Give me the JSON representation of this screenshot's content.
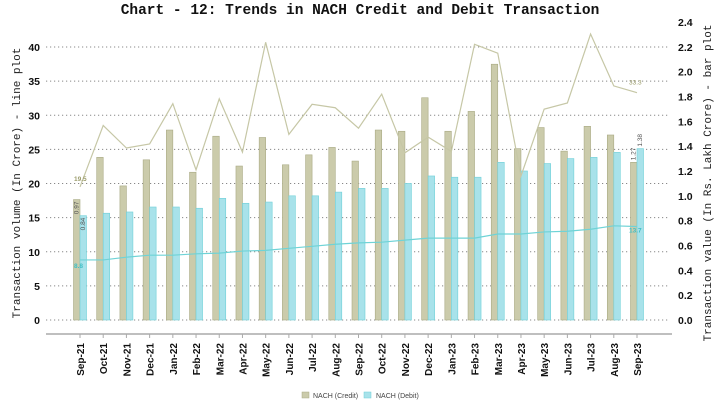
{
  "chart_data": {
    "type": "bar+line",
    "title": "Chart - 12: Trends in NACH Credit and Debit Transaction",
    "ylabel_left": "Transaction volume (In Crore) - line plot",
    "ylabel_right": "Transaction value (In Rs. Lakh Crore) - bar plot",
    "ylim_left": [
      0,
      40
    ],
    "yticks_left": [
      0,
      5,
      10,
      15,
      20,
      25,
      30,
      35,
      40
    ],
    "ylim_right": [
      0,
      2.4
    ],
    "yticks_right": [
      "0.0",
      "0.2",
      "0.4",
      "0.6",
      "0.8",
      "1.0",
      "1.2",
      "1.4",
      "1.6",
      "1.8",
      "2.0",
      "2.2",
      "2.4"
    ],
    "grid": true,
    "legend_position": "bottom",
    "categories": [
      "Sep-21",
      "Oct-21",
      "Nov-21",
      "Dec-21",
      "Jan-22",
      "Feb-22",
      "Mar-22",
      "Apr-22",
      "May-22",
      "Jun-22",
      "Jul-22",
      "Aug-22",
      "Sep-22",
      "Oct-22",
      "Nov-22",
      "Dec-22",
      "Jan-23",
      "Feb-23",
      "Mar-23",
      "Apr-23",
      "May-23",
      "Jun-23",
      "Jul-23",
      "Aug-23",
      "Sep-23"
    ],
    "bar_series": [
      {
        "name": "NACH (Credit)",
        "color": "#cbcbab",
        "edge": "#a9aa84",
        "values": [
          0.97,
          1.31,
          1.08,
          1.29,
          1.53,
          1.19,
          1.48,
          1.24,
          1.47,
          1.25,
          1.33,
          1.39,
          1.28,
          1.53,
          1.52,
          1.79,
          1.52,
          1.68,
          2.06,
          1.38,
          1.55,
          1.36,
          1.56,
          1.49,
          1.27
        ]
      },
      {
        "name": "NACH (Debit)",
        "color": "#a8e2ea",
        "edge": "#6fd0d8",
        "values": [
          0.84,
          0.86,
          0.87,
          0.91,
          0.91,
          0.9,
          0.98,
          0.94,
          0.95,
          1.0,
          1.0,
          1.03,
          1.06,
          1.06,
          1.1,
          1.16,
          1.15,
          1.15,
          1.27,
          1.2,
          1.26,
          1.3,
          1.31,
          1.35,
          1.38
        ]
      }
    ],
    "line_series": [
      {
        "color": "#c6c7a6",
        "values": [
          19.5,
          28.5,
          25.2,
          25.8,
          31.7,
          22.0,
          32.4,
          24.6,
          40.7,
          27.2,
          31.6,
          31.1,
          28.1,
          33.1,
          24.5,
          26.8,
          24.7,
          40.4,
          39.1,
          21.1,
          30.9,
          31.8,
          41.9,
          34.3,
          33.3
        ]
      },
      {
        "color": "#6fd3d6",
        "values": [
          8.8,
          8.8,
          9.2,
          9.5,
          9.5,
          9.7,
          9.8,
          10.1,
          10.2,
          10.5,
          10.8,
          11.1,
          11.3,
          11.4,
          11.7,
          12.0,
          12.0,
          12.0,
          12.6,
          12.6,
          12.9,
          13.0,
          13.3,
          13.8,
          13.7
        ]
      }
    ],
    "annotations": {
      "credit_bar_first": "0.97",
      "debit_bar_first": "0.84",
      "credit_bar_last": "1.27",
      "debit_bar_last": "1.38",
      "credit_line_first": "19.5",
      "credit_line_last": "33.3",
      "debit_line_first": "8.8",
      "debit_line_last": "13.7"
    }
  }
}
